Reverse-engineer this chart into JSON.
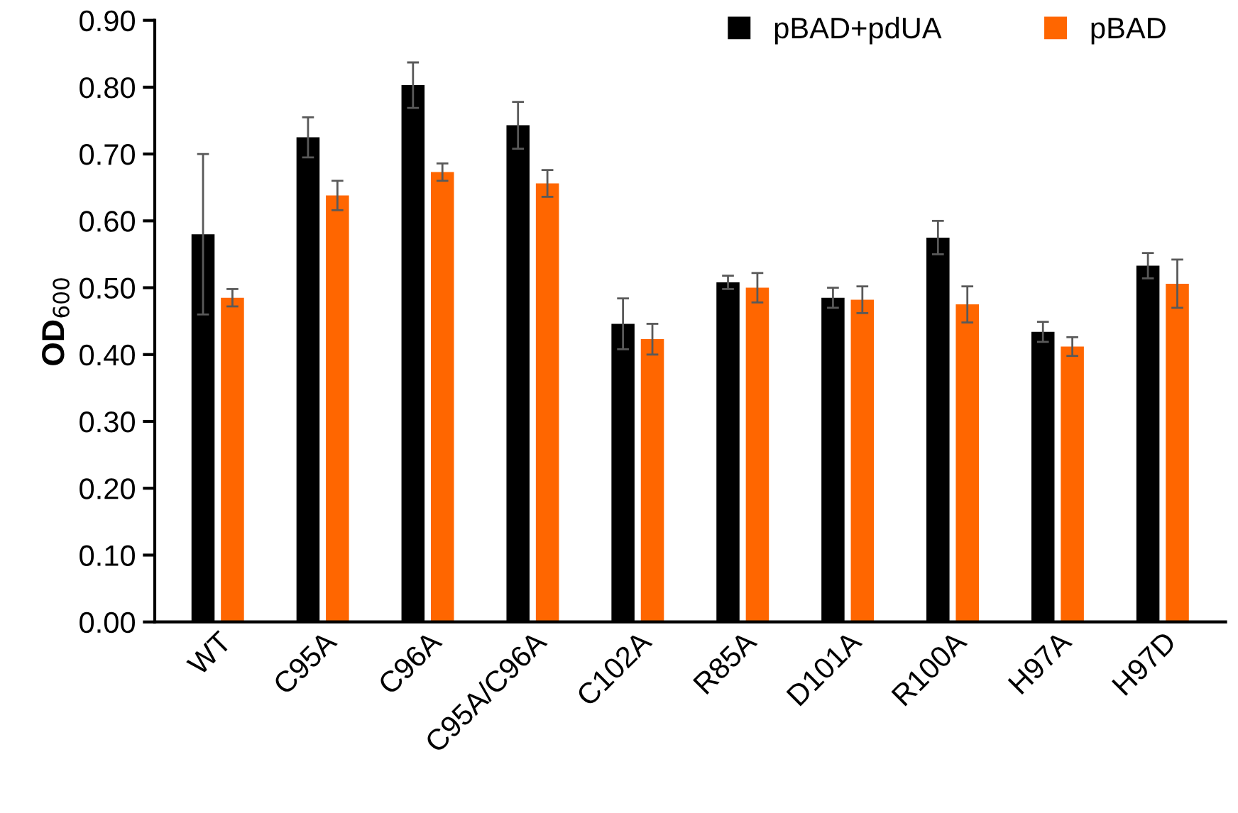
{
  "chart_data": {
    "type": "bar",
    "ylabel": "OD$_{600}$",
    "categories": [
      "WT",
      "C95A",
      "C96A",
      "C95A/C96A",
      "C102A",
      "R85A",
      "D101A",
      "R100A",
      "H97A",
      "H97D"
    ],
    "series": [
      {
        "name": "pBAD+pdUA",
        "color": "#000000",
        "values": [
          0.58,
          0.725,
          0.803,
          0.743,
          0.446,
          0.508,
          0.485,
          0.575,
          0.434,
          0.533
        ],
        "errors": [
          0.12,
          0.03,
          0.034,
          0.035,
          0.038,
          0.01,
          0.015,
          0.025,
          0.015,
          0.019
        ]
      },
      {
        "name": "pBAD",
        "color": "#ff6600",
        "values": [
          0.485,
          0.638,
          0.673,
          0.656,
          0.423,
          0.5,
          0.482,
          0.475,
          0.412,
          0.506
        ],
        "errors": [
          0.013,
          0.022,
          0.013,
          0.02,
          0.023,
          0.022,
          0.02,
          0.027,
          0.014,
          0.036
        ]
      }
    ],
    "ylim": [
      0,
      0.9
    ],
    "yticks": [
      {
        "value": 0,
        "label": "0.00"
      },
      {
        "value": 0.1,
        "label": "0.10"
      },
      {
        "value": 0.2,
        "label": "0.20"
      },
      {
        "value": 0.3,
        "label": "0.30"
      },
      {
        "value": 0.4,
        "label": "0.40"
      },
      {
        "value": 0.5,
        "label": "0.50"
      },
      {
        "value": 0.6,
        "label": "0.60"
      },
      {
        "value": 0.7,
        "label": "0.70"
      },
      {
        "value": 0.8,
        "label": "0.80"
      },
      {
        "value": 0.9,
        "label": "0.90"
      }
    ],
    "grid": false,
    "legend": "top right"
  }
}
